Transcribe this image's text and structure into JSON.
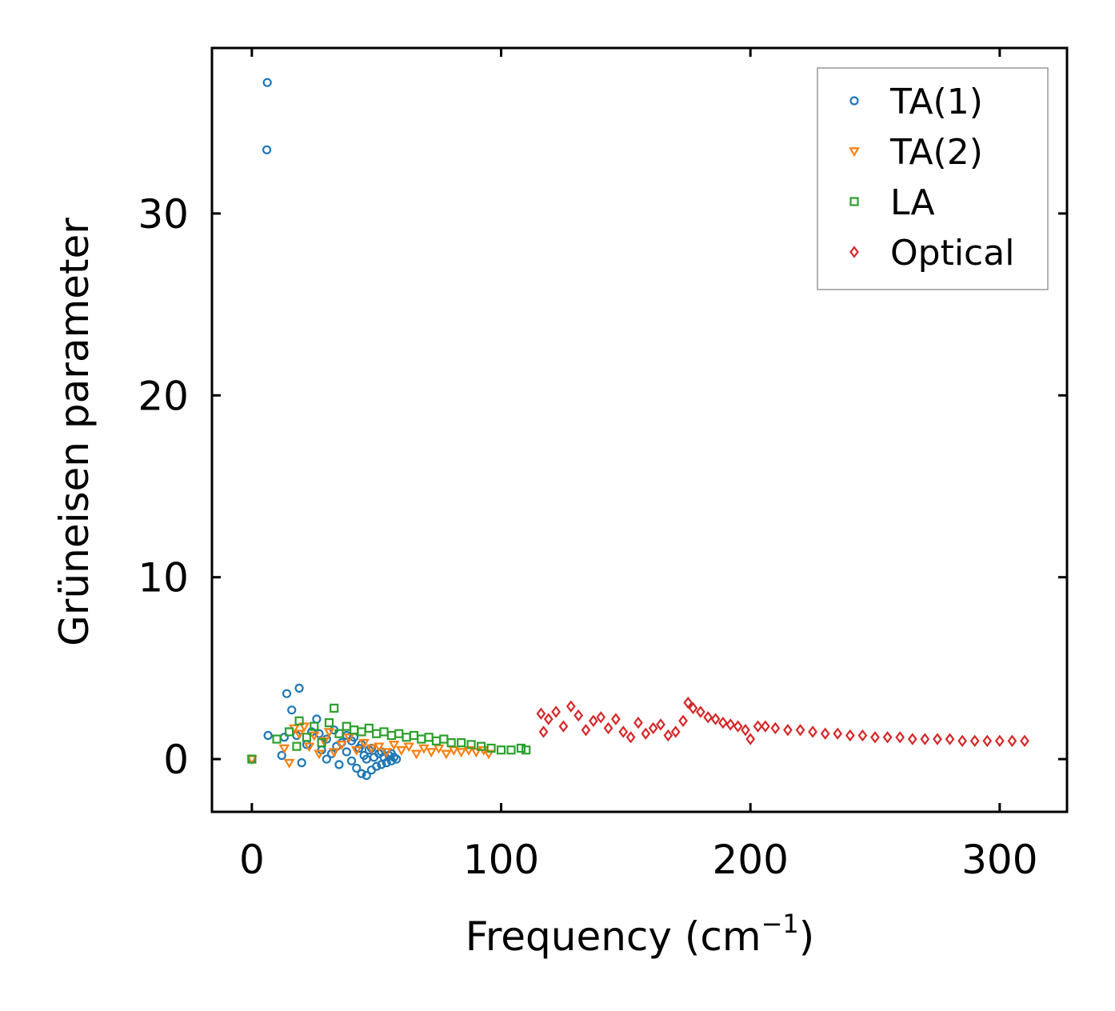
{
  "chart_data": {
    "type": "scatter",
    "title": "",
    "xlabel": "Frequency (cm",
    "xlabel_sup": "−1",
    "xlabel_close": ")",
    "ylabel": "Grüneisen parameter",
    "xlim": [
      -16,
      327
    ],
    "ylim": [
      -2.9,
      39.1
    ],
    "xticks": [
      0,
      100,
      200,
      300
    ],
    "yticks": [
      0,
      10,
      20,
      30
    ],
    "xtick_labels": [
      "0",
      "100",
      "200",
      "300"
    ],
    "ytick_labels": [
      "0",
      "10",
      "20",
      "30"
    ],
    "legend_position": "top-right",
    "series": [
      {
        "name": "TA(1)",
        "marker": "circle",
        "color": "#1f77b4",
        "points": [
          [
            0,
            0
          ],
          [
            6,
            33.5
          ],
          [
            6.2,
            37.2
          ],
          [
            6.5,
            1.3
          ],
          [
            12,
            0.2
          ],
          [
            13,
            1.2
          ],
          [
            14,
            3.6
          ],
          [
            16,
            2.7
          ],
          [
            18,
            1.3
          ],
          [
            19,
            3.9
          ],
          [
            20,
            -0.2
          ],
          [
            22,
            0.8
          ],
          [
            24,
            1.5
          ],
          [
            26,
            2.2
          ],
          [
            27,
            1.4
          ],
          [
            28,
            0.5
          ],
          [
            30,
            1.1
          ],
          [
            32,
            0.3
          ],
          [
            33,
            1.6
          ],
          [
            35,
            -0.3
          ],
          [
            36,
            0.9
          ],
          [
            38,
            0.4
          ],
          [
            40,
            -0.1
          ],
          [
            41,
            1.2
          ],
          [
            42,
            -0.5
          ],
          [
            43,
            0.6
          ],
          [
            44,
            -0.8
          ],
          [
            45,
            0.2
          ],
          [
            46,
            -0.9
          ],
          [
            47,
            0.5
          ],
          [
            48,
            -0.6
          ],
          [
            49,
            0.1
          ],
          [
            50,
            -0.4
          ],
          [
            51,
            0.3
          ],
          [
            52,
            -0.3
          ],
          [
            53,
            0.1
          ],
          [
            54,
            -0.2
          ],
          [
            55,
            0.2
          ],
          [
            56,
            -0.1
          ],
          [
            57,
            0.1
          ],
          [
            58,
            0.0
          ],
          [
            40,
            1.0
          ],
          [
            44,
            0.8
          ],
          [
            48,
            0.6
          ],
          [
            52,
            0.4
          ],
          [
            56,
            0.3
          ],
          [
            30,
            0.0
          ],
          [
            34,
            0.7
          ],
          [
            38,
            1.3
          ],
          [
            46,
            0.0
          ]
        ]
      },
      {
        "name": "TA(2)",
        "marker": "triangle-down",
        "color": "#ff7f0e",
        "points": [
          [
            0,
            0
          ],
          [
            13,
            0.6
          ],
          [
            15,
            -0.2
          ],
          [
            17,
            1.7
          ],
          [
            19,
            1.4
          ],
          [
            21,
            1.8
          ],
          [
            23,
            0.7
          ],
          [
            25,
            1.3
          ],
          [
            27,
            0.3
          ],
          [
            29,
            1.0
          ],
          [
            31,
            1.5
          ],
          [
            33,
            0.4
          ],
          [
            36,
            0.8
          ],
          [
            39,
            1.2
          ],
          [
            42,
            0.5
          ],
          [
            45,
            0.9
          ],
          [
            48,
            0.6
          ],
          [
            51,
            0.7
          ],
          [
            54,
            0.4
          ],
          [
            57,
            0.8
          ],
          [
            60,
            0.5
          ],
          [
            63,
            0.7
          ],
          [
            66,
            0.3
          ],
          [
            69,
            0.6
          ],
          [
            72,
            0.4
          ],
          [
            75,
            0.6
          ],
          [
            78,
            0.3
          ],
          [
            81,
            0.5
          ],
          [
            84,
            0.4
          ],
          [
            87,
            0.5
          ],
          [
            90,
            0.4
          ],
          [
            93,
            0.5
          ],
          [
            95,
            0.3
          ]
        ]
      },
      {
        "name": "LA",
        "marker": "square",
        "color": "#2ca02c",
        "points": [
          [
            0,
            0
          ],
          [
            10,
            1.1
          ],
          [
            15,
            1.5
          ],
          [
            18,
            0.7
          ],
          [
            19,
            2.1
          ],
          [
            22,
            1.2
          ],
          [
            25,
            1.8
          ],
          [
            28,
            0.9
          ],
          [
            31,
            2.0
          ],
          [
            33,
            2.8
          ],
          [
            35,
            1.4
          ],
          [
            38,
            1.8
          ],
          [
            41,
            1.6
          ],
          [
            44,
            1.5
          ],
          [
            47,
            1.7
          ],
          [
            50,
            1.4
          ],
          [
            53,
            1.5
          ],
          [
            56,
            1.3
          ],
          [
            59,
            1.4
          ],
          [
            62,
            1.2
          ],
          [
            65,
            1.3
          ],
          [
            68,
            1.1
          ],
          [
            71,
            1.2
          ],
          [
            74,
            1.0
          ],
          [
            77,
            1.1
          ],
          [
            80,
            0.9
          ],
          [
            84,
            0.9
          ],
          [
            88,
            0.8
          ],
          [
            92,
            0.7
          ],
          [
            96,
            0.6
          ],
          [
            100,
            0.5
          ],
          [
            104,
            0.5
          ],
          [
            108,
            0.6
          ],
          [
            110,
            0.5
          ]
        ]
      },
      {
        "name": "Optical",
        "marker": "diamond",
        "color": "#d62728",
        "points": [
          [
            116,
            2.5
          ],
          [
            117,
            1.5
          ],
          [
            119,
            2.2
          ],
          [
            122,
            2.6
          ],
          [
            125,
            1.8
          ],
          [
            128,
            2.9
          ],
          [
            131,
            2.4
          ],
          [
            134,
            1.6
          ],
          [
            137,
            2.1
          ],
          [
            140,
            2.3
          ],
          [
            143,
            1.7
          ],
          [
            146,
            2.2
          ],
          [
            149,
            1.5
          ],
          [
            152,
            1.2
          ],
          [
            155,
            2.0
          ],
          [
            158,
            1.4
          ],
          [
            161,
            1.7
          ],
          [
            164,
            1.9
          ],
          [
            167,
            1.3
          ],
          [
            170,
            1.5
          ],
          [
            173,
            2.1
          ],
          [
            175,
            3.1
          ],
          [
            177,
            2.8
          ],
          [
            180,
            2.6
          ],
          [
            183,
            2.3
          ],
          [
            186,
            2.2
          ],
          [
            189,
            2.0
          ],
          [
            192,
            1.9
          ],
          [
            195,
            1.8
          ],
          [
            198,
            1.6
          ],
          [
            200,
            1.1
          ],
          [
            203,
            1.8
          ],
          [
            206,
            1.8
          ],
          [
            210,
            1.7
          ],
          [
            215,
            1.6
          ],
          [
            220,
            1.6
          ],
          [
            225,
            1.5
          ],
          [
            230,
            1.4
          ],
          [
            235,
            1.4
          ],
          [
            240,
            1.3
          ],
          [
            245,
            1.3
          ],
          [
            250,
            1.2
          ],
          [
            255,
            1.2
          ],
          [
            260,
            1.2
          ],
          [
            265,
            1.1
          ],
          [
            270,
            1.1
          ],
          [
            275,
            1.1
          ],
          [
            280,
            1.1
          ],
          [
            285,
            1.0
          ],
          [
            290,
            1.0
          ],
          [
            295,
            1.0
          ],
          [
            300,
            1.0
          ],
          [
            305,
            1.0
          ],
          [
            310,
            1.0
          ]
        ]
      }
    ]
  }
}
